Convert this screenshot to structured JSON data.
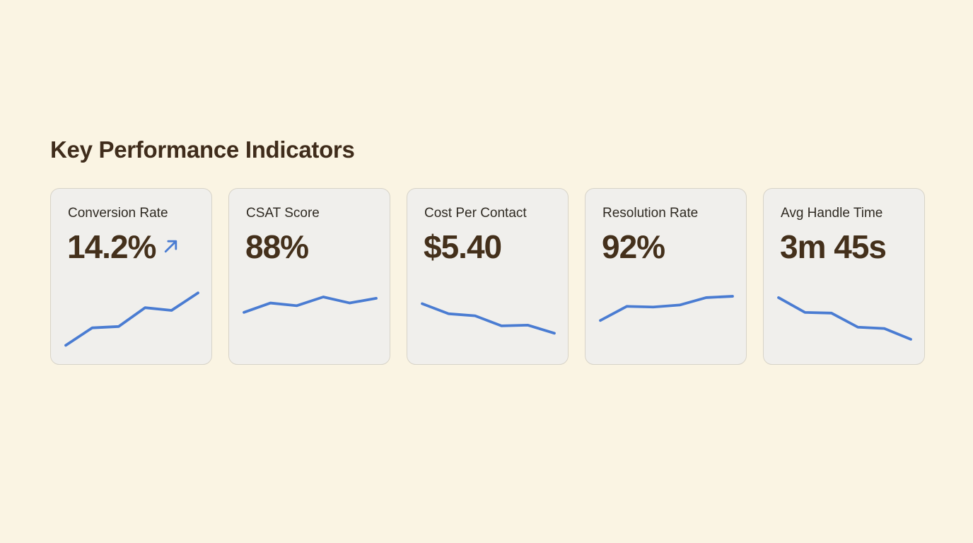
{
  "page": {
    "title": "Key Performance Indicators"
  },
  "theme": {
    "background_color": "#FAF4E3",
    "card_background": "#F0EFEC",
    "card_border": "#D7D3C8",
    "title_color": "#3F2C1B",
    "label_color": "#2F2A22",
    "value_color": "#44301B",
    "sparkline_color": "#4A7CD2",
    "trend_arrow_color": "#4A7CD2"
  },
  "cards": [
    {
      "id": "conversion-rate",
      "label": "Conversion Rate",
      "value": "14.2%",
      "trend_icon": "arrow-up-right"
    },
    {
      "id": "csat-score",
      "label": "CSAT Score",
      "value": "88%",
      "trend_icon": null
    },
    {
      "id": "cost-per-contact",
      "label": "Cost Per Contact",
      "value": "$5.40",
      "trend_icon": null
    },
    {
      "id": "resolution-rate",
      "label": "Resolution Rate",
      "value": "92%",
      "trend_icon": null
    },
    {
      "id": "avg-handle-time",
      "label": "Avg Handle Time",
      "value": "3m 45s",
      "trend_icon": null
    }
  ],
  "chart_data": [
    {
      "type": "line",
      "title": "Conversion Rate trend sparkline",
      "x": [
        1,
        2,
        3,
        4,
        5,
        6
      ],
      "values_relative": [
        8,
        34,
        36,
        64,
        60,
        86
      ],
      "trend": "up",
      "axes": false,
      "legend": false
    },
    {
      "type": "line",
      "title": "CSAT Score trend sparkline",
      "x": [
        1,
        2,
        3,
        4,
        5,
        6
      ],
      "values_relative": [
        57,
        71,
        67,
        80,
        71,
        78
      ],
      "trend": "up",
      "axes": false,
      "legend": false
    },
    {
      "type": "line",
      "title": "Cost Per Contact trend sparkline",
      "x": [
        1,
        2,
        3,
        4,
        5,
        6
      ],
      "values_relative": [
        70,
        55,
        52,
        37,
        38,
        26
      ],
      "trend": "down",
      "axes": false,
      "legend": false
    },
    {
      "type": "line",
      "title": "Resolution Rate trend sparkline",
      "x": [
        1,
        2,
        3,
        4,
        5,
        6
      ],
      "values_relative": [
        45,
        66,
        65,
        68,
        79,
        81
      ],
      "trend": "up",
      "axes": false,
      "legend": false
    },
    {
      "type": "line",
      "title": "Avg Handle Time trend sparkline",
      "x": [
        1,
        2,
        3,
        4,
        5,
        6
      ],
      "values_relative": [
        79,
        57,
        56,
        35,
        33,
        17
      ],
      "trend": "down",
      "axes": false,
      "legend": false
    }
  ]
}
